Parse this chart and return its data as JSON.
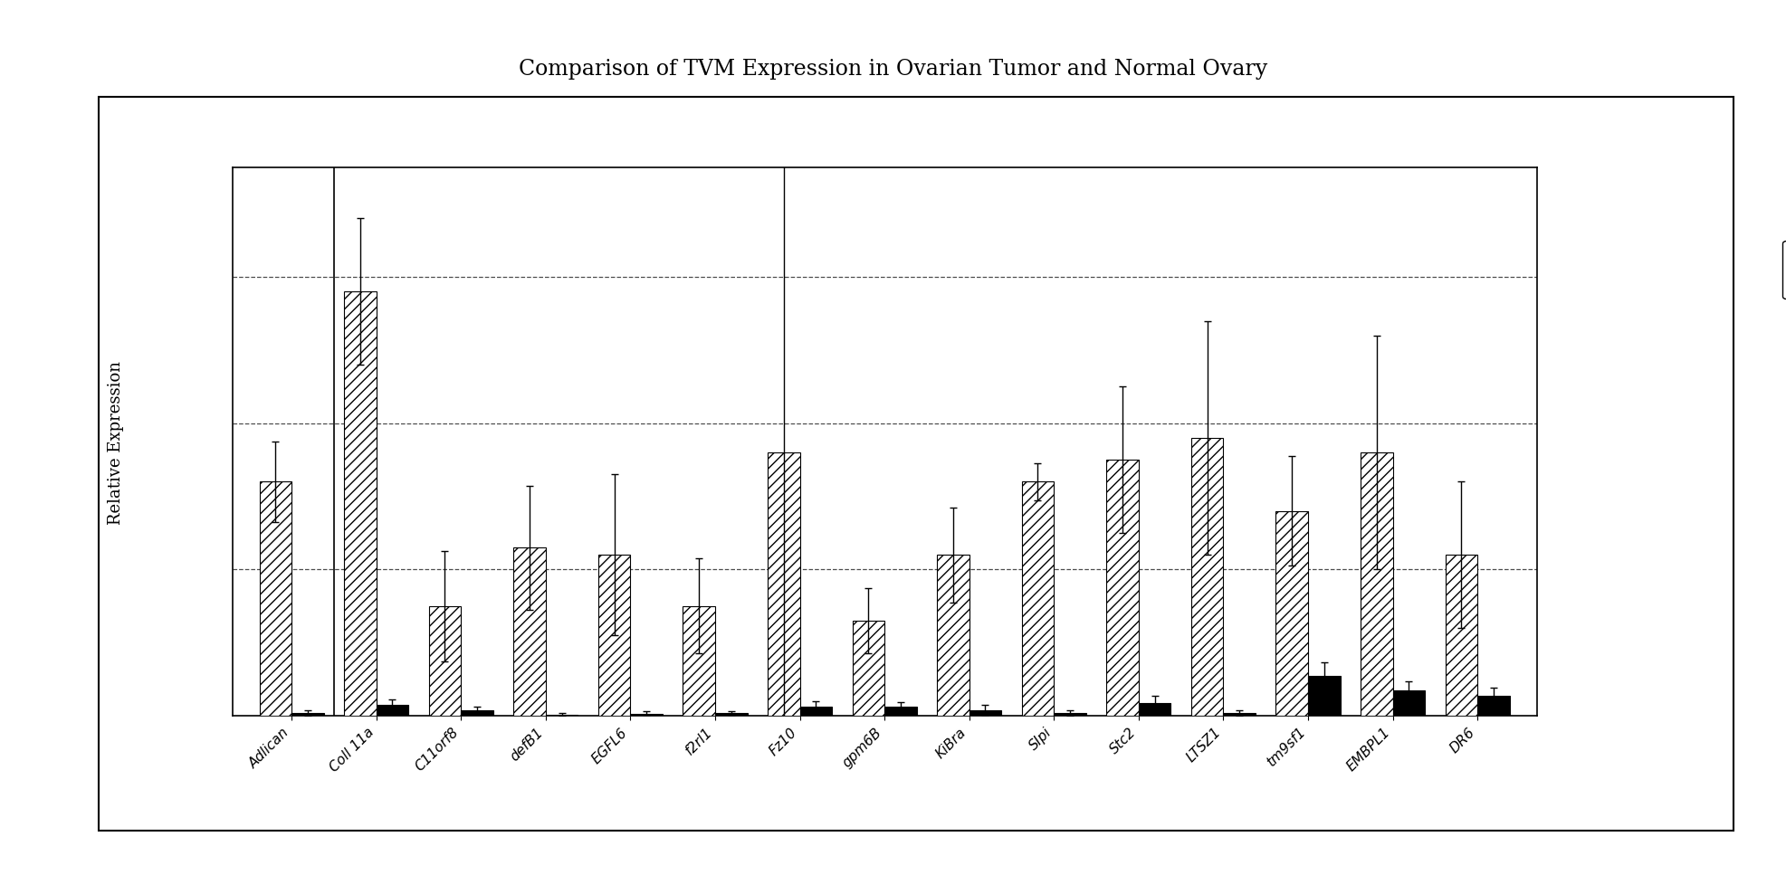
{
  "title": "Comparison of TVM Expression in Ovarian Tumor and Normal Ovary",
  "ylabel": "Relative Expression",
  "categories": [
    "Adlican",
    "Coll 11a",
    "C11orf8",
    "defB1",
    "EGFL6",
    "f2rl1",
    "Fz10",
    "gpm6B",
    "KiBra",
    "SIpi",
    "Stc2",
    "LTSZ1",
    "tm9sf1",
    "EMBPL1",
    "DR6"
  ],
  "tumor_values": [
    3.2,
    5.8,
    1.5,
    2.3,
    2.2,
    1.5,
    3.6,
    1.3,
    2.2,
    3.2,
    3.5,
    3.8,
    2.8,
    3.6,
    2.2
  ],
  "normal_values": [
    0.04,
    0.15,
    0.08,
    0.02,
    0.03,
    0.04,
    0.12,
    0.12,
    0.08,
    0.04,
    0.18,
    0.04,
    0.55,
    0.35,
    0.28
  ],
  "tumor_errors": [
    0.55,
    1.0,
    0.75,
    0.85,
    1.1,
    0.65,
    4.0,
    0.45,
    0.65,
    0.25,
    1.0,
    1.6,
    0.75,
    1.6,
    1.0
  ],
  "normal_errors": [
    0.04,
    0.08,
    0.05,
    0.02,
    0.04,
    0.03,
    0.08,
    0.07,
    0.07,
    0.04,
    0.09,
    0.04,
    0.18,
    0.12,
    0.1
  ],
  "tumor_hatch": "///",
  "background_color": "#ffffff",
  "ylim": [
    0,
    7.5
  ],
  "grid_vals": [
    2.0,
    4.0,
    6.0
  ],
  "title_fontsize": 17,
  "label_fontsize": 13,
  "tick_fontsize": 11,
  "legend_fontsize": 12,
  "bar_width": 0.38,
  "vline_x": 0.5
}
